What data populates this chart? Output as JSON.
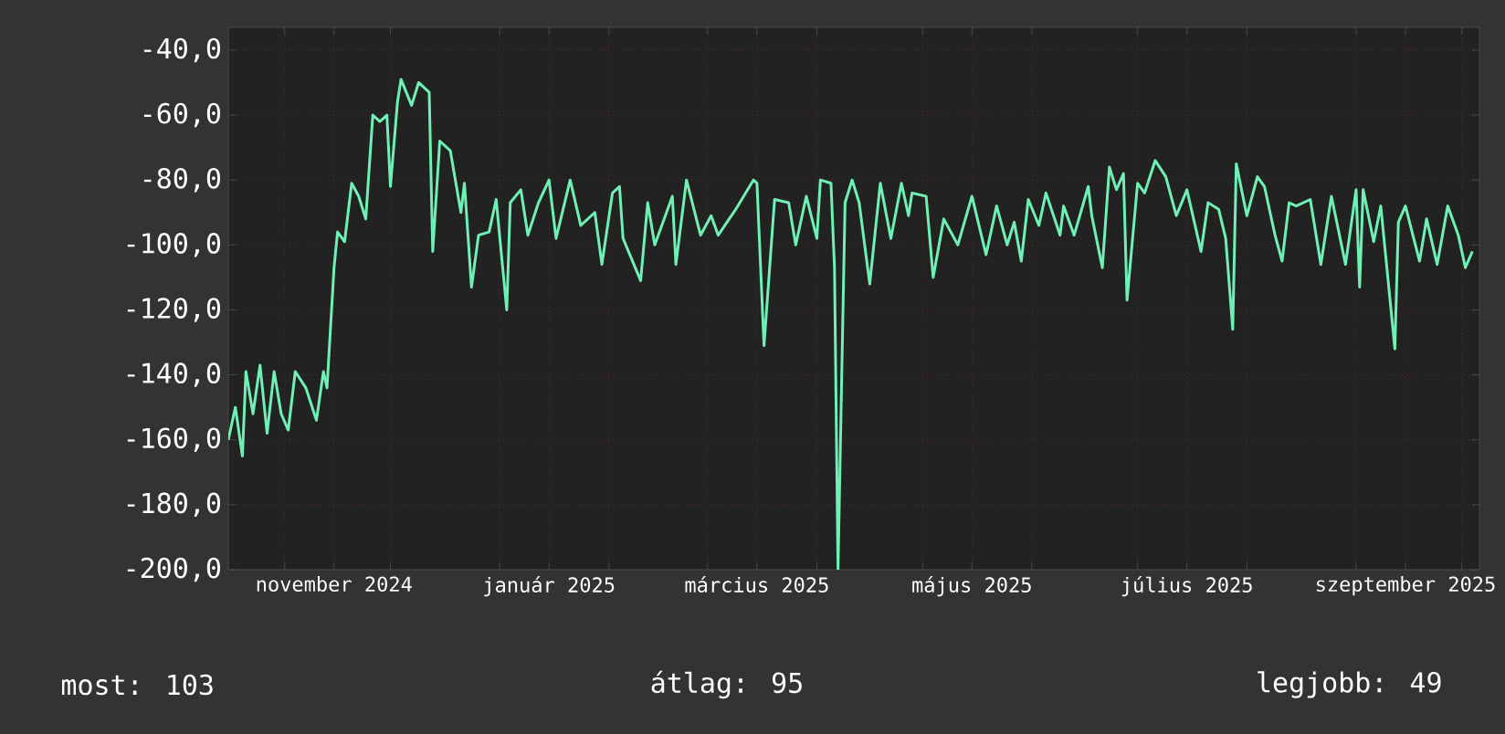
{
  "chart_data": {
    "type": "line",
    "color": "#6ff0b4",
    "grid": true,
    "marker": "none",
    "xlim": [
      "2024-10-16",
      "2025-10-06"
    ],
    "ylim": [
      -200,
      -33
    ],
    "yticks": [
      {
        "value": -40,
        "label": "-40,0"
      },
      {
        "value": -60,
        "label": "-60,0"
      },
      {
        "value": -80,
        "label": "-80,0"
      },
      {
        "value": -100,
        "label": "-100,0"
      },
      {
        "value": -120,
        "label": "-120,0"
      },
      {
        "value": -140,
        "label": "-140,0"
      },
      {
        "value": -160,
        "label": "-160,0"
      },
      {
        "value": -180,
        "label": "-180,0"
      },
      {
        "value": -200,
        "label": "-200,0"
      }
    ],
    "xticks": [
      {
        "value": "2024-11-01",
        "label": null
      },
      {
        "value": "2024-11-15",
        "label": "november 2024"
      },
      {
        "value": "2024-12-01",
        "label": null
      },
      {
        "value": "2025-01-01",
        "label": null
      },
      {
        "value": "2025-01-15",
        "label": "január 2025"
      },
      {
        "value": "2025-02-01",
        "label": null
      },
      {
        "value": "2025-03-01",
        "label": null
      },
      {
        "value": "2025-03-15",
        "label": "március 2025"
      },
      {
        "value": "2025-04-01",
        "label": null
      },
      {
        "value": "2025-05-01",
        "label": null
      },
      {
        "value": "2025-05-15",
        "label": "május 2025"
      },
      {
        "value": "2025-06-01",
        "label": null
      },
      {
        "value": "2025-07-01",
        "label": null
      },
      {
        "value": "2025-07-15",
        "label": "július 2025"
      },
      {
        "value": "2025-08-01",
        "label": null
      },
      {
        "value": "2025-09-01",
        "label": null
      },
      {
        "value": "2025-09-15",
        "label": "szeptember 2025"
      },
      {
        "value": "2025-10-01",
        "label": null
      }
    ],
    "x": [
      "2024-10-16",
      "2024-10-18",
      "2024-10-20",
      "2024-10-21",
      "2024-10-23",
      "2024-10-25",
      "2024-10-27",
      "2024-10-29",
      "2024-10-31",
      "2024-11-02",
      "2024-11-04",
      "2024-11-07",
      "2024-11-10",
      "2024-11-12",
      "2024-11-13",
      "2024-11-15",
      "2024-11-16",
      "2024-11-18",
      "2024-11-20",
      "2024-11-22",
      "2024-11-24",
      "2024-11-26",
      "2024-11-28",
      "2024-11-30",
      "2024-12-01",
      "2024-12-03",
      "2024-12-04",
      "2024-12-07",
      "2024-12-09",
      "2024-12-12",
      "2024-12-13",
      "2024-12-15",
      "2024-12-18",
      "2024-12-21",
      "2024-12-22",
      "2024-12-24",
      "2024-12-26",
      "2024-12-29",
      "2024-12-31",
      "2025-01-03",
      "2025-01-04",
      "2025-01-07",
      "2025-01-09",
      "2025-01-12",
      "2025-01-15",
      "2025-01-17",
      "2025-01-21",
      "2025-01-24",
      "2025-01-28",
      "2025-01-30",
      "2025-02-02",
      "2025-02-04",
      "2025-02-05",
      "2025-02-10",
      "2025-02-12",
      "2025-02-14",
      "2025-02-19",
      "2025-02-20",
      "2025-02-23",
      "2025-02-27",
      "2025-03-02",
      "2025-03-04",
      "2025-03-09",
      "2025-03-14",
      "2025-03-15",
      "2025-03-17",
      "2025-03-20",
      "2025-03-24",
      "2025-03-26",
      "2025-03-29",
      "2025-04-01",
      "2025-04-02",
      "2025-04-05",
      "2025-04-06",
      "2025-04-07",
      "2025-04-09",
      "2025-04-11",
      "2025-04-13",
      "2025-04-16",
      "2025-04-19",
      "2025-04-22",
      "2025-04-25",
      "2025-04-27",
      "2025-04-28",
      "2025-05-02",
      "2025-05-04",
      "2025-05-07",
      "2025-05-11",
      "2025-05-15",
      "2025-05-19",
      "2025-05-22",
      "2025-05-25",
      "2025-05-27",
      "2025-05-29",
      "2025-05-31",
      "2025-06-03",
      "2025-06-05",
      "2025-06-09",
      "2025-06-10",
      "2025-06-13",
      "2025-06-17",
      "2025-06-18",
      "2025-06-21",
      "2025-06-23",
      "2025-06-25",
      "2025-06-27",
      "2025-06-28",
      "2025-07-01",
      "2025-07-03",
      "2025-07-06",
      "2025-07-09",
      "2025-07-12",
      "2025-07-15",
      "2025-07-19",
      "2025-07-21",
      "2025-07-24",
      "2025-07-26",
      "2025-07-28",
      "2025-07-29",
      "2025-08-01",
      "2025-08-04",
      "2025-08-06",
      "2025-08-09",
      "2025-08-11",
      "2025-08-13",
      "2025-08-15",
      "2025-08-19",
      "2025-08-22",
      "2025-08-25",
      "2025-08-29",
      "2025-09-01",
      "2025-09-02",
      "2025-09-03",
      "2025-09-06",
      "2025-09-08",
      "2025-09-12",
      "2025-09-13",
      "2025-09-15",
      "2025-09-19",
      "2025-09-21",
      "2025-09-24",
      "2025-09-27",
      "2025-09-30",
      "2025-10-02",
      "2025-10-04"
    ],
    "values": [
      -160,
      -150,
      -165,
      -139,
      -152,
      -137,
      -158,
      -139,
      -152,
      -157,
      -139,
      -144,
      -154,
      -139,
      -144,
      -107,
      -96,
      -99,
      -81,
      -85,
      -92,
      -60,
      -62,
      -60,
      -82,
      -56,
      -49,
      -57,
      -50,
      -53,
      -102,
      -68,
      -71,
      -90,
      -81,
      -113,
      -97,
      -96,
      -86,
      -120,
      -87,
      -83,
      -97,
      -87,
      -80,
      -98,
      -80,
      -94,
      -90,
      -106,
      -84,
      -82,
      -98,
      -111,
      -87,
      -100,
      -85,
      -106,
      -80,
      -97,
      -91,
      -97,
      -89,
      -80,
      -81,
      -131,
      -86,
      -87,
      -100,
      -85,
      -98,
      -80,
      -81,
      -107,
      -200,
      -87,
      -80,
      -87,
      -112,
      -81,
      -98,
      -81,
      -91,
      -84,
      -85,
      -110,
      -92,
      -100,
      -85,
      -103,
      -88,
      -100,
      -93,
      -105,
      -86,
      -94,
      -84,
      -97,
      -88,
      -97,
      -82,
      -91,
      -107,
      -76,
      -83,
      -78,
      -117,
      -81,
      -84,
      -74,
      -79,
      -91,
      -83,
      -102,
      -87,
      -89,
      -98,
      -126,
      -75,
      -91,
      -79,
      -82,
      -97,
      -105,
      -87,
      -88,
      -86,
      -106,
      -85,
      -106,
      -83,
      -113,
      -83,
      -99,
      -88,
      -132,
      -93,
      -88,
      -105,
      -92,
      -106,
      -88,
      -97,
      -107,
      -102
    ],
    "annotations": [
      "most: 103",
      "átlag: 95",
      "legjobb: 49"
    ]
  }
}
